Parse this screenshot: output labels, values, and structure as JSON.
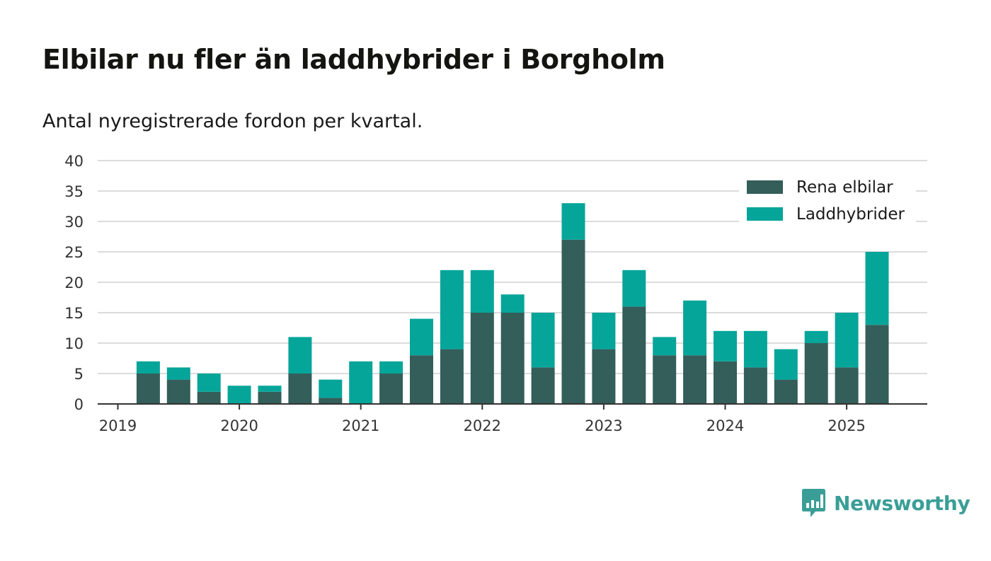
{
  "title": "Elbilar nu fler än laddhybrider i Borgholm",
  "subtitle": "Antal nyregistrerade fordon per kvartal.",
  "brand": "Newsworthy",
  "colors": {
    "series1": "#335e5a",
    "series2": "#06a59a",
    "grid": "#dcdcdc",
    "axis": "#333333",
    "brand": "#3a9e97"
  },
  "chart_data": {
    "type": "bar",
    "stacked": true,
    "x": [
      "2019-Q1",
      "2019-Q2",
      "2019-Q3",
      "2019-Q4",
      "2020-Q1",
      "2020-Q2",
      "2020-Q3",
      "2020-Q4",
      "2021-Q1",
      "2021-Q2",
      "2021-Q3",
      "2021-Q4",
      "2022-Q1",
      "2022-Q2",
      "2022-Q3",
      "2022-Q4",
      "2023-Q1",
      "2023-Q2",
      "2023-Q3",
      "2023-Q4",
      "2024-Q1",
      "2024-Q2",
      "2024-Q3",
      "2024-Q4",
      "2025-Q1",
      "2025-Q2"
    ],
    "series": [
      {
        "name": "Rena elbilar",
        "values": [
          0,
          5,
          4,
          2,
          0,
          2,
          5,
          1,
          0,
          5,
          8,
          9,
          15,
          15,
          6,
          27,
          9,
          16,
          8,
          8,
          7,
          6,
          4,
          10,
          6,
          13
        ]
      },
      {
        "name": "Laddhybrider",
        "values": [
          0,
          2,
          2,
          3,
          3,
          1,
          6,
          3,
          7,
          2,
          6,
          13,
          7,
          3,
          9,
          6,
          6,
          6,
          3,
          9,
          5,
          6,
          5,
          2,
          9,
          12
        ]
      }
    ],
    "ylim": [
      0,
      40
    ],
    "yticks": [
      "0",
      "5",
      "10",
      "15",
      "20",
      "25",
      "30",
      "35",
      "40"
    ],
    "xticks": [
      "2019",
      "2020",
      "2021",
      "2022",
      "2023",
      "2024",
      "2025"
    ],
    "grid": true,
    "legend_position": "top-right"
  }
}
